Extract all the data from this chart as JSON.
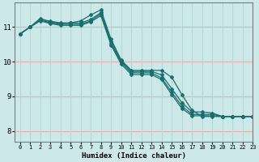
{
  "xlabel": "Humidex (Indice chaleur)",
  "background_color": "#cce8e8",
  "grid_color_h": "#e8b0b0",
  "grid_color_v": "#b8d8d8",
  "line_color": "#1a6e6e",
  "xlim": [
    -0.5,
    23
  ],
  "ylim": [
    7.7,
    11.7
  ],
  "yticks": [
    8,
    9,
    10,
    11
  ],
  "xticks": [
    0,
    1,
    2,
    3,
    4,
    5,
    6,
    7,
    8,
    9,
    10,
    11,
    12,
    13,
    14,
    15,
    16,
    17,
    18,
    19,
    20,
    21,
    22,
    23
  ],
  "zigzag": [
    10.8,
    11.0,
    11.25,
    11.15,
    11.1,
    11.12,
    11.18,
    11.35,
    11.5,
    10.65,
    10.05,
    9.75,
    9.75,
    9.75,
    9.75,
    9.55,
    9.05,
    8.6,
    8.42,
    8.42,
    8.42,
    8.42,
    8.42,
    8.42
  ],
  "smooth1": [
    10.8,
    11.0,
    11.22,
    11.17,
    11.12,
    11.12,
    11.12,
    11.22,
    11.42,
    10.58,
    10.02,
    9.72,
    9.72,
    9.72,
    9.62,
    9.22,
    8.82,
    8.55,
    8.55,
    8.52,
    8.42,
    8.42,
    8.42,
    8.42
  ],
  "smooth2": [
    10.8,
    11.0,
    11.2,
    11.13,
    11.08,
    11.08,
    11.08,
    11.18,
    11.38,
    10.53,
    9.98,
    9.68,
    9.68,
    9.68,
    9.53,
    9.12,
    8.72,
    8.48,
    8.48,
    8.48,
    8.42,
    8.42,
    8.42,
    8.42
  ],
  "smooth3": [
    10.8,
    11.0,
    11.18,
    11.1,
    11.05,
    11.05,
    11.05,
    11.15,
    11.33,
    10.48,
    9.93,
    9.63,
    9.63,
    9.63,
    9.48,
    9.05,
    8.65,
    8.44,
    8.44,
    8.44,
    8.42,
    8.42,
    8.42,
    8.42
  ]
}
